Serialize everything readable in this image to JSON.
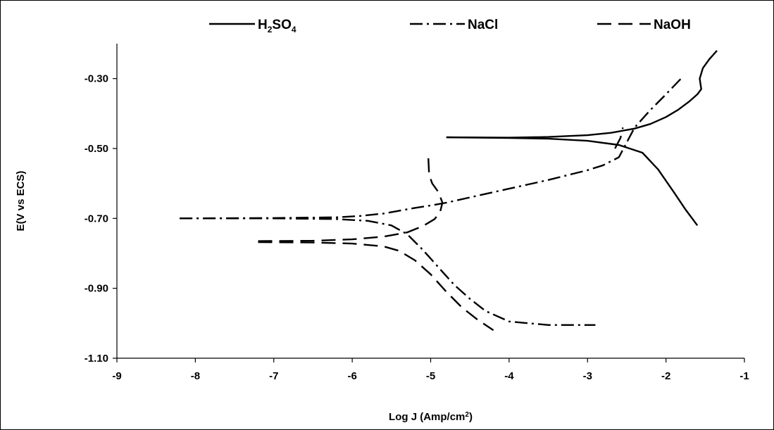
{
  "chart_data": {
    "type": "line",
    "title": "",
    "xlabel": "Log J (Amp/cm²)",
    "xlabel_parts": {
      "main": "Log J (Amp/cm",
      "sup": "2",
      "end": ")"
    },
    "ylabel": "E(V vs ECS)",
    "xlim": [
      -9,
      -1
    ],
    "ylim": [
      -1.1,
      -0.2
    ],
    "xticks": [
      -9,
      -8,
      -7,
      -6,
      -5,
      -4,
      -3,
      -2,
      -1
    ],
    "xtick_labels": [
      "-9",
      "-8",
      "-7",
      "-6",
      "-5",
      "-4",
      "-3",
      "-2",
      "-1"
    ],
    "yticks": [
      -1.1,
      -0.9,
      -0.7,
      -0.5,
      -0.3
    ],
    "ytick_labels": [
      "-1.10",
      "-0.90",
      "-0.70",
      "-0.50",
      "-0.30"
    ],
    "grid": false,
    "legend_position": "top",
    "series": [
      {
        "name": "H₂SO₄",
        "name_parts": {
          "a": "H",
          "sub1": "2",
          "b": "SO",
          "sub2": "4"
        },
        "dash": "solid",
        "color": "#000000",
        "branches": [
          {
            "x": [
              -4.8,
              -4.0,
              -3.5,
              -3.0,
              -2.7,
              -2.4,
              -2.2,
              -2.0,
              -1.85,
              -1.7,
              -1.6,
              -1.55,
              -1.57,
              -1.53,
              -1.45,
              -1.35
            ],
            "y": [
              -0.468,
              -0.469,
              -0.467,
              -0.462,
              -0.455,
              -0.443,
              -0.43,
              -0.41,
              -0.39,
              -0.365,
              -0.345,
              -0.33,
              -0.3,
              -0.27,
              -0.245,
              -0.22
            ]
          },
          {
            "x": [
              -4.8,
              -4.0,
              -3.5,
              -3.0,
              -2.6,
              -2.3,
              -2.1,
              -1.9,
              -1.75,
              -1.6
            ],
            "y": [
              -0.468,
              -0.47,
              -0.472,
              -0.478,
              -0.49,
              -0.512,
              -0.56,
              -0.625,
              -0.675,
              -0.72
            ]
          }
        ]
      },
      {
        "name": "NaCl",
        "dash": "dashdot",
        "color": "#000000",
        "branches": [
          {
            "x": [
              -8.2,
              -7.0,
              -6.2,
              -5.9,
              -5.6,
              -5.4,
              -5.2,
              -5.0,
              -4.8,
              -4.5,
              -4.0,
              -3.5,
              -3.0,
              -2.8,
              -2.6,
              -2.4,
              -2.2,
              -2.0,
              -1.8
            ],
            "y": [
              -0.7,
              -0.699,
              -0.697,
              -0.693,
              -0.686,
              -0.678,
              -0.67,
              -0.663,
              -0.655,
              -0.64,
              -0.615,
              -0.59,
              -0.562,
              -0.548,
              -0.525,
              -0.44,
              -0.39,
              -0.345,
              -0.298
            ]
          },
          {
            "x": [
              -8.2,
              -7.0,
              -6.2,
              -5.8,
              -5.5,
              -5.3,
              -5.1,
              -4.9,
              -4.7,
              -4.5,
              -4.3,
              -4.0,
              -3.5,
              -3.0,
              -2.9
            ],
            "y": [
              -0.7,
              -0.7,
              -0.702,
              -0.707,
              -0.72,
              -0.745,
              -0.79,
              -0.84,
              -0.89,
              -0.93,
              -0.965,
              -0.995,
              -1.005,
              -1.005,
              -1.005
            ]
          }
        ]
      },
      {
        "name": "NaOH",
        "dash": "dashed",
        "color": "#000000",
        "branches": [
          {
            "x": [
              -7.2,
              -6.5,
              -6.0,
              -5.6,
              -5.3,
              -5.1,
              -4.95,
              -4.88,
              -4.85,
              -4.9,
              -4.98,
              -5.02,
              -5.03
            ],
            "y": [
              -0.765,
              -0.764,
              -0.76,
              -0.752,
              -0.74,
              -0.722,
              -0.702,
              -0.682,
              -0.655,
              -0.625,
              -0.6,
              -0.575,
              -0.528
            ]
          },
          {
            "x": [
              -7.2,
              -6.5,
              -6.0,
              -5.6,
              -5.4,
              -5.2,
              -5.0,
              -4.8,
              -4.6,
              -4.4,
              -4.2
            ],
            "y": [
              -0.768,
              -0.769,
              -0.772,
              -0.78,
              -0.793,
              -0.82,
              -0.86,
              -0.91,
              -0.955,
              -0.99,
              -1.02
            ]
          },
          {
            "x": [
              -2.65,
              -2.58,
              -2.55
            ],
            "y": [
              -0.5,
              -0.47,
              -0.44
            ]
          }
        ]
      }
    ]
  }
}
